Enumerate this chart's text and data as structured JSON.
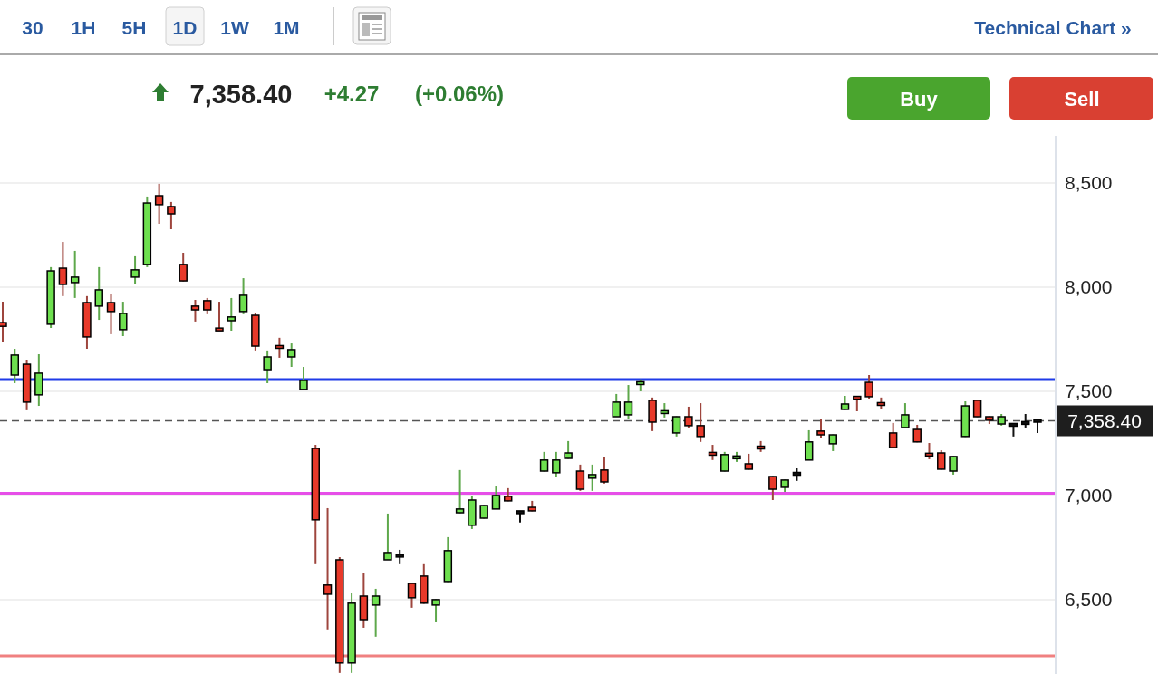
{
  "chart_data": {
    "type": "candlestick",
    "categories": [
      null,
      null,
      null,
      null,
      null,
      null,
      null,
      null,
      null,
      null,
      null,
      null,
      null,
      null,
      null,
      null,
      null,
      null,
      null,
      null,
      null,
      null,
      null,
      null,
      null,
      null,
      null,
      null,
      null,
      null,
      null,
      null,
      null,
      null,
      null,
      null,
      null,
      null,
      null,
      null,
      null,
      null,
      null,
      null,
      null,
      null,
      null,
      null,
      null,
      null,
      null,
      null,
      null,
      null,
      null,
      null,
      null,
      null,
      null,
      null,
      null,
      null,
      null,
      null,
      null,
      null,
      null,
      null,
      null,
      null,
      null,
      null,
      null,
      null,
      null,
      null,
      null,
      null,
      null,
      null,
      null,
      null,
      null,
      null,
      null,
      null,
      null
    ],
    "ohlc": [
      [
        7830,
        7930,
        7735,
        7812
      ],
      [
        7578,
        7704,
        7539,
        7674
      ],
      [
        7630,
        7652,
        7409,
        7448
      ],
      [
        7483,
        7678,
        7430,
        7587
      ],
      [
        7822,
        8096,
        7804,
        8078
      ],
      [
        8091,
        8217,
        7957,
        8013
      ],
      [
        8022,
        8174,
        7948,
        8048
      ],
      [
        7926,
        7957,
        7704,
        7761
      ],
      [
        7909,
        8096,
        7843,
        7987
      ],
      [
        7926,
        7965,
        7774,
        7883
      ],
      [
        7796,
        7930,
        7765,
        7874
      ],
      [
        8048,
        8148,
        8017,
        8083
      ],
      [
        8109,
        8435,
        8096,
        8404
      ],
      [
        8439,
        8496,
        8304,
        8396
      ],
      [
        8387,
        8409,
        8278,
        8352
      ],
      [
        8109,
        8165,
        8028,
        8030
      ],
      [
        7909,
        7939,
        7835,
        7891
      ],
      [
        7935,
        7948,
        7870,
        7891
      ],
      [
        7798,
        7930,
        7796,
        7796
      ],
      [
        7839,
        7948,
        7791,
        7857
      ],
      [
        7883,
        8043,
        7870,
        7961
      ],
      [
        7865,
        7878,
        7696,
        7717
      ],
      [
        7604,
        7696,
        7539,
        7665
      ],
      [
        7715,
        7757,
        7661,
        7711
      ],
      [
        7665,
        7730,
        7617,
        7700
      ],
      [
        7509,
        7617,
        7509,
        7552
      ],
      [
        7226,
        7243,
        6670,
        6883
      ],
      [
        6570,
        6939,
        6357,
        6526
      ],
      [
        6691,
        6704,
        6148,
        6196
      ],
      [
        6196,
        6530,
        6148,
        6483
      ],
      [
        6517,
        6626,
        6365,
        6404
      ],
      [
        6474,
        6552,
        6322,
        6517
      ],
      [
        6691,
        6913,
        6691,
        6726
      ],
      [
        6713,
        6739,
        6670,
        6709
      ],
      [
        6578,
        6578,
        6461,
        6509
      ],
      [
        6613,
        6670,
        6480,
        6483
      ],
      [
        6474,
        6502,
        6391,
        6500
      ],
      [
        6587,
        6800,
        6585,
        6735
      ],
      [
        6917,
        7122,
        6915,
        6935
      ],
      [
        6857,
        6996,
        6839,
        6978
      ],
      [
        6891,
        6954,
        6889,
        6952
      ],
      [
        6935,
        7043,
        6935,
        7000
      ],
      [
        6996,
        7035,
        6972,
        6974
      ],
      [
        6922,
        6924,
        6870,
        6917
      ],
      [
        6943,
        6974,
        6924,
        6926
      ],
      [
        7117,
        7209,
        7115,
        7170
      ],
      [
        7109,
        7209,
        7087,
        7170
      ],
      [
        7178,
        7261,
        7176,
        7204
      ],
      [
        7117,
        7148,
        7022,
        7030
      ],
      [
        7083,
        7148,
        7022,
        7100
      ],
      [
        7122,
        7183,
        7057,
        7065
      ],
      [
        7378,
        7487,
        7378,
        7448
      ],
      [
        7387,
        7530,
        7365,
        7448
      ],
      [
        7537,
        7557,
        7500,
        7541
      ],
      [
        7457,
        7470,
        7309,
        7352
      ],
      [
        7398,
        7443,
        7374,
        7402
      ],
      [
        7300,
        7380,
        7283,
        7378
      ],
      [
        7378,
        7426,
        7326,
        7335
      ],
      [
        7335,
        7443,
        7257,
        7283
      ],
      [
        7202,
        7243,
        7170,
        7198
      ],
      [
        7117,
        7209,
        7115,
        7196
      ],
      [
        7181,
        7209,
        7161,
        7185
      ],
      [
        7152,
        7200,
        7124,
        7126
      ],
      [
        7232,
        7261,
        7209,
        7228
      ],
      [
        7091,
        7093,
        6978,
        7030
      ],
      [
        7039,
        7076,
        7017,
        7074
      ],
      [
        7104,
        7130,
        7070,
        7104
      ],
      [
        7170,
        7313,
        7170,
        7257
      ],
      [
        7309,
        7365,
        7274,
        7291
      ],
      [
        7248,
        7293,
        7213,
        7291
      ],
      [
        7413,
        7478,
        7411,
        7439
      ],
      [
        7470,
        7474,
        7404,
        7468
      ],
      [
        7543,
        7578,
        7465,
        7474
      ],
      [
        7441,
        7470,
        7417,
        7437
      ],
      [
        7300,
        7348,
        7228,
        7230
      ],
      [
        7326,
        7443,
        7326,
        7387
      ],
      [
        7317,
        7339,
        7255,
        7257
      ],
      [
        7198,
        7252,
        7174,
        7194
      ],
      [
        7204,
        7217,
        7124,
        7126
      ],
      [
        7117,
        7189,
        7100,
        7187
      ],
      [
        7283,
        7452,
        7281,
        7430
      ],
      [
        7457,
        7459,
        7376,
        7378
      ],
      [
        7378,
        7380,
        7343,
        7361
      ],
      [
        7343,
        7391,
        7335,
        7378
      ],
      [
        7339,
        7341,
        7283,
        7339
      ],
      [
        7348,
        7391,
        7326,
        7348
      ],
      [
        7358.4,
        7365,
        7300,
        7358.4
      ]
    ],
    "colors": [
      "#e8392a",
      "#6ee04f",
      "#e8392a",
      "#6ee04f",
      "#6ee04f",
      "#e8392a",
      "#6ee04f",
      "#e8392a",
      "#6ee04f",
      "#e8392a",
      "#6ee04f",
      "#6ee04f",
      "#6ee04f",
      "#e8392a",
      "#e8392a",
      "#e8392a",
      "#e8392a",
      "#e8392a",
      "#e8392a",
      "#6ee04f",
      "#6ee04f",
      "#e8392a",
      "#6ee04f",
      "#e8392a",
      "#6ee04f",
      "#6ee04f",
      "#e8392a",
      "#e8392a",
      "#e8392a",
      "#6ee04f",
      "#e8392a",
      "#6ee04f",
      "#6ee04f",
      "#111111",
      "#e8392a",
      "#e8392a",
      "#6ee04f",
      "#6ee04f",
      "#6ee04f",
      "#6ee04f",
      "#6ee04f",
      "#6ee04f",
      "#e8392a",
      "#111111",
      "#e8392a",
      "#6ee04f",
      "#6ee04f",
      "#6ee04f",
      "#e8392a",
      "#6ee04f",
      "#e8392a",
      "#6ee04f",
      "#6ee04f",
      "#6ee04f",
      "#e8392a",
      "#6ee04f",
      "#6ee04f",
      "#e8392a",
      "#e8392a",
      "#e8392a",
      "#6ee04f",
      "#6ee04f",
      "#e8392a",
      "#e8392a",
      "#e8392a",
      "#6ee04f",
      "#111111",
      "#6ee04f",
      "#e8392a",
      "#6ee04f",
      "#6ee04f",
      "#e8392a",
      "#e8392a",
      "#e8392a",
      "#e8392a",
      "#6ee04f",
      "#e8392a",
      "#e8392a",
      "#e8392a",
      "#6ee04f",
      "#6ee04f",
      "#e8392a",
      "#e8392a",
      "#6ee04f",
      "#111111",
      "#111111",
      "#111111"
    ],
    "ylim": [
      6143,
      8726
    ],
    "yticks": [
      {
        "value": 6500,
        "label": "6,500"
      },
      {
        "value": 7000,
        "label": "7,000"
      },
      {
        "value": 7500,
        "label": "7,500"
      },
      {
        "value": 8000,
        "label": "8,000"
      },
      {
        "value": 8500,
        "label": "8,500"
      }
    ],
    "tick_labels": "y",
    "grid": "y",
    "ref_lines": [
      {
        "axis": "y",
        "value": 7358.4,
        "label": "7,358.40",
        "color": "#555555",
        "line_style": "dashed"
      },
      {
        "axis": "y",
        "value": 7556,
        "color": "#1f3be8",
        "line_style": "solid"
      },
      {
        "axis": "y",
        "value": 7011,
        "color": "#e64ee8",
        "line_style": "solid"
      },
      {
        "axis": "y",
        "value": 6230,
        "color": "#f08080",
        "line_style": "solid"
      }
    ],
    "annotations": [
      "30",
      "1H",
      "5H",
      "1D",
      "1W",
      "1M",
      "Technical Chart »",
      "7,358.40",
      "+4.27",
      "(+0.06%)",
      "Buy",
      "Sell"
    ]
  }
}
